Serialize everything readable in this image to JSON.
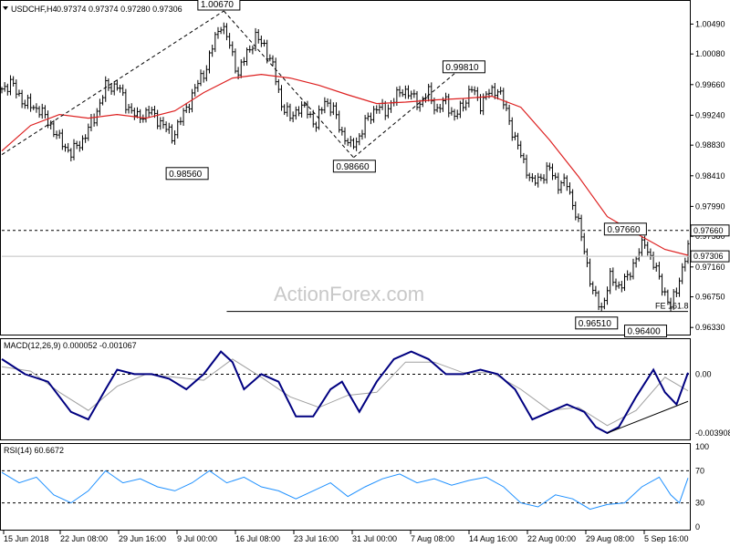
{
  "chart_data": {
    "type": "candlestick",
    "header": {
      "symbol_timeframe": "USDCHF,H4",
      "ohlc_text": "0.97374 0.97374 0.97280 0.97306"
    },
    "watermark": "ActionForex.com",
    "x_tick_labels": [
      "15 Jun 2018",
      "22 Jun 08:00",
      "29 Jun 16:00",
      "9 Jul 00:00",
      "16 Jul 08:00",
      "23 Jul 16:00",
      "31 Jul 00:00",
      "7 Aug 08:00",
      "14 Aug 16:00",
      "22 Aug 00:00",
      "29 Aug 08:00",
      "5 Sep 16:00"
    ],
    "price_panel": {
      "y_ticks": [
        "1.00490",
        "1.00080",
        "0.99660",
        "0.99240",
        "0.98830",
        "0.98410",
        "0.97990",
        "0.97580",
        "0.97160",
        "0.96750",
        "0.96330"
      ],
      "ylim": [
        0.9627,
        1.0077
      ],
      "current_price_label": "0.97306",
      "current_price": 0.97306,
      "level_label": "0.97660",
      "level": 0.9766,
      "annotations": [
        {
          "text": "1.00670",
          "value": 1.0067
        },
        {
          "text": "0.98560",
          "value": 0.9856
        },
        {
          "text": "0.98660",
          "value": 0.9866
        },
        {
          "text": "0.99810",
          "value": 0.9981
        },
        {
          "text": "0.97660",
          "value": 0.9766
        },
        {
          "text": "0.96510",
          "value": 0.9651
        },
        {
          "text": "0.96400",
          "value": 0.964
        }
      ],
      "fib_label": "FE 161.8",
      "fib_level": 0.9655,
      "close_path": [
        [
          0,
          0.996
        ],
        [
          3,
          0.9968
        ],
        [
          8,
          0.994
        ],
        [
          13,
          0.9932
        ],
        [
          17,
          0.991
        ],
        [
          20,
          0.989
        ],
        [
          24,
          0.9872
        ],
        [
          28,
          0.989
        ],
        [
          32,
          0.992
        ],
        [
          36,
          0.9962
        ],
        [
          40,
          0.9965
        ],
        [
          43,
          0.994
        ],
        [
          47,
          0.992
        ],
        [
          51,
          0.993
        ],
        [
          55,
          0.9915
        ],
        [
          59,
          0.9895
        ],
        [
          63,
          0.9925
        ],
        [
          67,
          0.996
        ],
        [
          71,
          0.999
        ],
        [
          74,
          1.003
        ],
        [
          76,
          1.005
        ],
        [
          79,
          1.002
        ],
        [
          82,
          0.998
        ],
        [
          85,
          1.001
        ],
        [
          88,
          1.003
        ],
        [
          91,
          1.002
        ],
        [
          94,
          0.999
        ],
        [
          97,
          0.994
        ],
        [
          100,
          0.992
        ],
        [
          103,
          0.9935
        ],
        [
          106,
          0.993
        ],
        [
          109,
          0.991
        ],
        [
          112,
          0.9945
        ],
        [
          115,
          0.993
        ],
        [
          118,
          0.99
        ],
        [
          121,
          0.988
        ],
        [
          124,
          0.9895
        ],
        [
          127,
          0.992
        ],
        [
          130,
          0.9935
        ],
        [
          133,
          0.993
        ],
        [
          136,
          0.9945
        ],
        [
          139,
          0.996
        ],
        [
          142,
          0.995
        ],
        [
          145,
          0.994
        ],
        [
          148,
          0.9955
        ],
        [
          151,
          0.993
        ],
        [
          154,
          0.9945
        ],
        [
          157,
          0.992
        ],
        [
          160,
          0.994
        ],
        [
          163,
          0.996
        ],
        [
          166,
          0.994
        ],
        [
          169,
          0.9955
        ],
        [
          172,
          0.996
        ],
        [
          175,
          0.993
        ],
        [
          178,
          0.989
        ],
        [
          181,
          0.986
        ],
        [
          184,
          0.983
        ],
        [
          187,
          0.984
        ],
        [
          190,
          0.985
        ],
        [
          193,
          0.983
        ],
        [
          196,
          0.983
        ],
        [
          199,
          0.979
        ],
        [
          202,
          0.974
        ],
        [
          205,
          0.968
        ],
        [
          208,
          0.966
        ],
        [
          211,
          0.97
        ],
        [
          214,
          0.969
        ],
        [
          217,
          0.97
        ],
        [
          220,
          0.973
        ],
        [
          223,
          0.975
        ],
        [
          226,
          0.972
        ],
        [
          229,
          0.969
        ],
        [
          232,
          0.966
        ],
        [
          235,
          0.97
        ],
        [
          238,
          0.974
        ]
      ],
      "sma_path": [
        [
          0,
          0.9875
        ],
        [
          10,
          0.991
        ],
        [
          20,
          0.9925
        ],
        [
          30,
          0.992
        ],
        [
          40,
          0.9925
        ],
        [
          50,
          0.992
        ],
        [
          60,
          0.993
        ],
        [
          70,
          0.9955
        ],
        [
          80,
          0.9975
        ],
        [
          90,
          0.998
        ],
        [
          100,
          0.9975
        ],
        [
          110,
          0.9965
        ],
        [
          120,
          0.9952
        ],
        [
          130,
          0.994
        ],
        [
          140,
          0.9942
        ],
        [
          150,
          0.9945
        ],
        [
          160,
          0.9947
        ],
        [
          170,
          0.995
        ],
        [
          180,
          0.9935
        ],
        [
          190,
          0.989
        ],
        [
          200,
          0.984
        ],
        [
          210,
          0.9785
        ],
        [
          220,
          0.9762
        ],
        [
          230,
          0.974
        ],
        [
          238,
          0.9732
        ]
      ]
    },
    "macd_panel": {
      "label": "MACD(12,26,9) 0.000052 -0.001067",
      "y_ticks": [
        "0.00",
        "-0.003908"
      ],
      "ylim": [
        -0.0042,
        0.0022
      ],
      "macd_path": [
        [
          0,
          0.001
        ],
        [
          8,
          0.0
        ],
        [
          16,
          -0.0005
        ],
        [
          24,
          -0.0025
        ],
        [
          30,
          -0.003
        ],
        [
          36,
          -0.001
        ],
        [
          40,
          0.0003
        ],
        [
          46,
          0.0
        ],
        [
          52,
          0.0
        ],
        [
          58,
          -0.0003
        ],
        [
          64,
          -0.001
        ],
        [
          70,
          0.0
        ],
        [
          76,
          0.0015
        ],
        [
          80,
          0.0008
        ],
        [
          84,
          -0.001
        ],
        [
          90,
          0.0
        ],
        [
          96,
          -0.0005
        ],
        [
          102,
          -0.0028
        ],
        [
          108,
          -0.0028
        ],
        [
          114,
          -0.001
        ],
        [
          118,
          -0.0005
        ],
        [
          124,
          -0.0025
        ],
        [
          130,
          -0.0005
        ],
        [
          136,
          0.001
        ],
        [
          142,
          0.0015
        ],
        [
          148,
          0.001
        ],
        [
          154,
          0.0
        ],
        [
          160,
          0.0
        ],
        [
          166,
          0.0003
        ],
        [
          172,
          0.0
        ],
        [
          178,
          -0.001
        ],
        [
          184,
          -0.003
        ],
        [
          190,
          -0.0025
        ],
        [
          196,
          -0.002
        ],
        [
          202,
          -0.0025
        ],
        [
          206,
          -0.0035
        ],
        [
          210,
          -0.0039
        ],
        [
          214,
          -0.0035
        ],
        [
          220,
          -0.0015
        ],
        [
          226,
          0.0003
        ],
        [
          230,
          -0.0012
        ],
        [
          234,
          -0.002
        ],
        [
          238,
          0.0001
        ]
      ],
      "signal_path": [
        [
          0,
          0.0005
        ],
        [
          10,
          0.0002
        ],
        [
          20,
          -0.0012
        ],
        [
          30,
          -0.0024
        ],
        [
          40,
          -0.0008
        ],
        [
          50,
          0.0
        ],
        [
          60,
          -0.0002
        ],
        [
          70,
          -0.0004
        ],
        [
          80,
          0.001
        ],
        [
          90,
          -0.0002
        ],
        [
          100,
          -0.0015
        ],
        [
          110,
          -0.0022
        ],
        [
          120,
          -0.0014
        ],
        [
          130,
          -0.0012
        ],
        [
          140,
          0.0008
        ],
        [
          150,
          0.0008
        ],
        [
          160,
          0.0001
        ],
        [
          170,
          0.0001
        ],
        [
          180,
          -0.001
        ],
        [
          190,
          -0.0024
        ],
        [
          200,
          -0.0022
        ],
        [
          210,
          -0.0034
        ],
        [
          220,
          -0.0024
        ],
        [
          230,
          -0.0002
        ],
        [
          238,
          -0.0011
        ]
      ],
      "trendline": [
        [
          210,
          -0.0039
        ],
        [
          238,
          -0.0018
        ]
      ]
    },
    "rsi_panel": {
      "label": "RSI(14) 60.6672",
      "y_ticks": [
        "100",
        "70",
        "30",
        "0"
      ],
      "ylim": [
        0,
        100
      ],
      "rsi_path": [
        [
          0,
          68
        ],
        [
          6,
          55
        ],
        [
          12,
          62
        ],
        [
          18,
          40
        ],
        [
          24,
          30
        ],
        [
          30,
          45
        ],
        [
          36,
          70
        ],
        [
          42,
          55
        ],
        [
          48,
          60
        ],
        [
          54,
          50
        ],
        [
          60,
          45
        ],
        [
          66,
          55
        ],
        [
          72,
          70
        ],
        [
          78,
          55
        ],
        [
          84,
          62
        ],
        [
          90,
          50
        ],
        [
          96,
          45
        ],
        [
          102,
          35
        ],
        [
          108,
          45
        ],
        [
          114,
          55
        ],
        [
          120,
          38
        ],
        [
          126,
          50
        ],
        [
          132,
          60
        ],
        [
          138,
          66
        ],
        [
          144,
          55
        ],
        [
          150,
          60
        ],
        [
          156,
          52
        ],
        [
          162,
          58
        ],
        [
          168,
          62
        ],
        [
          174,
          50
        ],
        [
          180,
          30
        ],
        [
          186,
          25
        ],
        [
          192,
          40
        ],
        [
          198,
          35
        ],
        [
          204,
          22
        ],
        [
          210,
          28
        ],
        [
          216,
          30
        ],
        [
          222,
          50
        ],
        [
          228,
          62
        ],
        [
          232,
          40
        ],
        [
          235,
          30
        ],
        [
          238,
          61
        ]
      ]
    }
  }
}
